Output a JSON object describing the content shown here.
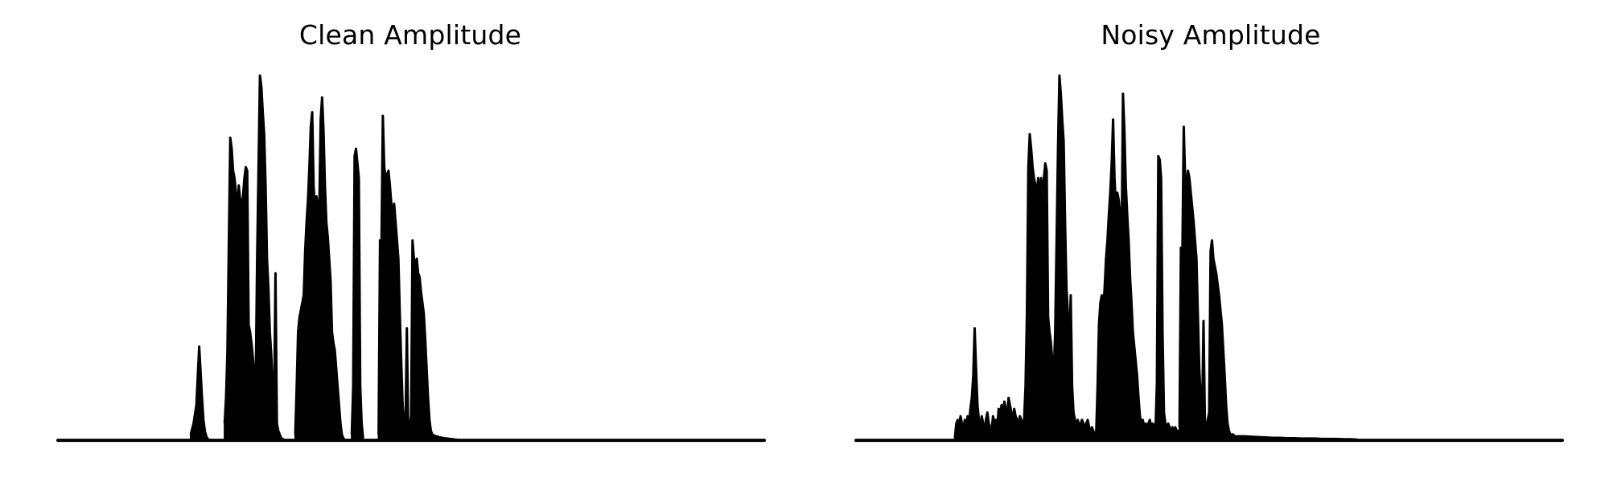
{
  "colors": {
    "background": "#ffffff",
    "line": "#000000"
  },
  "chart_data": [
    {
      "type": "area",
      "title": "Clean Amplitude",
      "xlabel": "",
      "ylabel": "",
      "axes_visible": false,
      "grid": false,
      "xlim": [
        0,
        1000
      ],
      "ylim": [
        0,
        1.0
      ],
      "baseline": 0.004,
      "segments": [
        {
          "name": "segment-1",
          "x": [
            188,
            192,
            196,
            198,
            200,
            202,
            204,
            206,
            208,
            210,
            212,
            214
          ],
          "values": [
            0.02,
            0.05,
            0.1,
            0.18,
            0.26,
            0.19,
            0.12,
            0.06,
            0.03,
            0.015,
            0.008,
            0.005
          ]
        },
        {
          "name": "segment-2",
          "x": [
            236,
            238,
            240,
            242,
            244,
            246,
            248,
            250,
            252,
            254,
            256,
            258,
            260,
            262,
            264,
            266,
            268,
            270,
            272,
            274,
            276,
            278,
            280,
            282,
            284,
            286,
            288,
            290,
            292,
            294,
            296,
            298,
            300,
            302,
            304,
            306,
            308,
            310,
            312,
            314,
            316,
            318,
            320
          ],
          "values": [
            0.05,
            0.12,
            0.25,
            0.55,
            0.83,
            0.8,
            0.74,
            0.72,
            0.68,
            0.62,
            0.7,
            0.66,
            0.65,
            0.67,
            0.72,
            0.75,
            0.74,
            0.32,
            0.3,
            0.27,
            0.23,
            0.18,
            0.16,
            0.5,
            0.75,
            1.0,
            0.97,
            0.9,
            0.84,
            0.7,
            0.5,
            0.42,
            0.3,
            0.24,
            0.15,
            0.08,
            0.46,
            0.05,
            0.03,
            0.02,
            0.01,
            0.008,
            0.005
          ]
        },
        {
          "name": "segment-3",
          "x": [
            336,
            338,
            340,
            342,
            344,
            346,
            348,
            350,
            352,
            354,
            356,
            358,
            360,
            362,
            364,
            366,
            368,
            370,
            372,
            374,
            376,
            378,
            380,
            382,
            384,
            386,
            388,
            390,
            392,
            394,
            396,
            398,
            400,
            402,
            404,
            406
          ],
          "values": [
            0.02,
            0.15,
            0.3,
            0.34,
            0.36,
            0.38,
            0.4,
            0.52,
            0.6,
            0.66,
            0.75,
            0.86,
            0.9,
            0.7,
            0.62,
            0.67,
            0.64,
            0.63,
            0.88,
            0.94,
            0.85,
            0.7,
            0.6,
            0.56,
            0.5,
            0.44,
            0.3,
            0.27,
            0.25,
            0.2,
            0.15,
            0.1,
            0.05,
            0.02,
            0.01,
            0.005
          ]
        },
        {
          "name": "segment-4",
          "x": [
            416,
            418,
            420,
            422,
            424,
            426,
            428,
            430,
            432
          ],
          "values": [
            0.02,
            0.15,
            0.78,
            0.8,
            0.76,
            0.72,
            0.15,
            0.05,
            0.01
          ]
        },
        {
          "name": "segment-5",
          "x": [
            454,
            456,
            458,
            460,
            462,
            464,
            466,
            468,
            470,
            472,
            474,
            476,
            478,
            480,
            482,
            484,
            486,
            488,
            490,
            492,
            494,
            496,
            498,
            500,
            502,
            504,
            506,
            508,
            510,
            512,
            514,
            516,
            518,
            520,
            522,
            524,
            526,
            528,
            530,
            532,
            534,
            536,
            538,
            540,
            542,
            544,
            546,
            548,
            550,
            552,
            554,
            556,
            558,
            560,
            562,
            564,
            566,
            568,
            570
          ],
          "values": [
            0.02,
            0.55,
            0.53,
            0.89,
            0.75,
            0.72,
            0.73,
            0.74,
            0.7,
            0.65,
            0.63,
            0.65,
            0.6,
            0.55,
            0.5,
            0.35,
            0.22,
            0.1,
            0.05,
            0.03,
            0.31,
            0.02,
            0.04,
            0.07,
            0.55,
            0.5,
            0.48,
            0.5,
            0.46,
            0.45,
            0.41,
            0.38,
            0.35,
            0.28,
            0.2,
            0.12,
            0.06,
            0.03,
            0.02,
            0.018,
            0.016,
            0.015,
            0.014,
            0.012,
            0.012,
            0.011,
            0.01,
            0.01,
            0.009,
            0.009,
            0.008,
            0.008,
            0.007,
            0.007,
            0.006,
            0.006,
            0.005,
            0.005,
            0.005
          ]
        }
      ]
    },
    {
      "type": "area",
      "title": "Noisy Amplitude",
      "xlabel": "",
      "ylabel": "",
      "axes_visible": false,
      "grid": false,
      "xlim": [
        0,
        1000
      ],
      "ylim": [
        0,
        1.0
      ],
      "baseline": 0.004,
      "segments": [
        {
          "name": "segment-1",
          "x": [
            140,
            142,
            144,
            146,
            148,
            150,
            152,
            154,
            156,
            158,
            160,
            162,
            164,
            166,
            168,
            170,
            172,
            174,
            176,
            178,
            180,
            182,
            184,
            186,
            188,
            190,
            192,
            194,
            196,
            198,
            200,
            202,
            204,
            206,
            208,
            210,
            212,
            214,
            216,
            218,
            220,
            222,
            224,
            226,
            228,
            230,
            232,
            234,
            236,
            238
          ],
          "values": [
            0.01,
            0.05,
            0.06,
            0.04,
            0.07,
            0.05,
            0.03,
            0.06,
            0.04,
            0.07,
            0.05,
            0.09,
            0.12,
            0.18,
            0.31,
            0.2,
            0.1,
            0.06,
            0.04,
            0.07,
            0.05,
            0.03,
            0.06,
            0.08,
            0.05,
            0.04,
            0.03,
            0.07,
            0.05,
            0.06,
            0.04,
            0.09,
            0.07,
            0.1,
            0.08,
            0.11,
            0.09,
            0.07,
            0.12,
            0.1,
            0.08,
            0.06,
            0.09,
            0.07,
            0.06,
            0.05,
            0.07,
            0.06,
            0.05,
            0.06
          ]
        },
        {
          "name": "segment-2",
          "x": [
            238,
            240,
            242,
            244,
            246,
            248,
            250,
            252,
            254,
            256,
            258,
            260,
            262,
            264,
            266,
            268,
            270,
            272,
            274,
            276,
            278,
            280,
            282,
            284,
            286,
            288,
            290,
            292,
            294,
            296,
            298,
            300,
            302,
            304,
            306,
            308,
            310,
            312,
            314,
            316,
            318,
            320,
            322,
            324,
            326,
            328,
            330,
            332,
            334,
            336,
            338,
            340
          ],
          "values": [
            0.06,
            0.15,
            0.35,
            0.75,
            0.84,
            0.8,
            0.75,
            0.72,
            0.7,
            0.68,
            0.72,
            0.64,
            0.72,
            0.66,
            0.72,
            0.76,
            0.74,
            0.34,
            0.3,
            0.27,
            0.22,
            0.19,
            0.3,
            0.55,
            0.8,
            1.0,
            0.95,
            0.88,
            0.82,
            0.6,
            0.42,
            0.35,
            0.25,
            0.4,
            0.15,
            0.08,
            0.06,
            0.05,
            0.06,
            0.04,
            0.05,
            0.06,
            0.05,
            0.04,
            0.05,
            0.06,
            0.04,
            0.03,
            0.04,
            0.03,
            0.02,
            0.02
          ]
        },
        {
          "name": "segment-3",
          "x": [
            340,
            342,
            344,
            346,
            348,
            350,
            352,
            354,
            356,
            358,
            360,
            362,
            364,
            366,
            368,
            370,
            372,
            374,
            376,
            378,
            380,
            382,
            384,
            386,
            388,
            390,
            392,
            394,
            396,
            398,
            400,
            402,
            404,
            406,
            408,
            410,
            412,
            414,
            416,
            418,
            420,
            422,
            424
          ],
          "values": [
            0.02,
            0.15,
            0.32,
            0.38,
            0.4,
            0.36,
            0.42,
            0.5,
            0.55,
            0.62,
            0.68,
            0.76,
            0.88,
            0.72,
            0.64,
            0.68,
            0.66,
            0.62,
            0.52,
            0.95,
            0.85,
            0.7,
            0.62,
            0.55,
            0.45,
            0.38,
            0.3,
            0.26,
            0.22,
            0.18,
            0.12,
            0.07,
            0.05,
            0.06,
            0.04,
            0.05,
            0.04,
            0.05,
            0.06,
            0.04,
            0.05,
            0.04,
            0.05
          ]
        },
        {
          "name": "segment-4",
          "x": [
            424,
            426,
            428,
            430,
            432,
            434,
            436,
            438,
            440,
            442,
            444,
            446,
            448,
            450,
            452,
            454,
            456,
            458
          ],
          "values": [
            0.03,
            0.16,
            0.78,
            0.77,
            0.72,
            0.3,
            0.08,
            0.05,
            0.04,
            0.05,
            0.04,
            0.03,
            0.04,
            0.03,
            0.04,
            0.03,
            0.03,
            0.03
          ]
        },
        {
          "name": "segment-5",
          "x": [
            458,
            460,
            462,
            464,
            466,
            468,
            470,
            472,
            474,
            476,
            478,
            480,
            482,
            484,
            486,
            488,
            490,
            492,
            494,
            496,
            498,
            500,
            502,
            504,
            506,
            508,
            510,
            512,
            514,
            516,
            518,
            520,
            522,
            524,
            526,
            528,
            530,
            532,
            534,
            536,
            538,
            540
          ],
          "values": [
            0.04,
            0.53,
            0.5,
            0.86,
            0.72,
            0.7,
            0.74,
            0.72,
            0.68,
            0.64,
            0.6,
            0.55,
            0.5,
            0.35,
            0.2,
            0.12,
            0.07,
            0.33,
            0.05,
            0.04,
            0.06,
            0.08,
            0.52,
            0.55,
            0.5,
            0.48,
            0.46,
            0.43,
            0.4,
            0.36,
            0.32,
            0.25,
            0.18,
            0.1,
            0.05,
            0.03,
            0.02,
            0.02,
            0.02,
            0.015,
            0.015,
            0.015
          ]
        },
        {
          "name": "segment-6",
          "x": [
            540,
            550,
            560,
            570,
            580,
            590,
            600,
            610,
            620,
            630,
            640,
            650,
            660,
            670,
            680,
            690,
            700,
            710
          ],
          "values": [
            0.015,
            0.015,
            0.014,
            0.013,
            0.012,
            0.011,
            0.011,
            0.01,
            0.01,
            0.009,
            0.009,
            0.009,
            0.008,
            0.008,
            0.008,
            0.007,
            0.007,
            0.006
          ]
        }
      ]
    }
  ]
}
